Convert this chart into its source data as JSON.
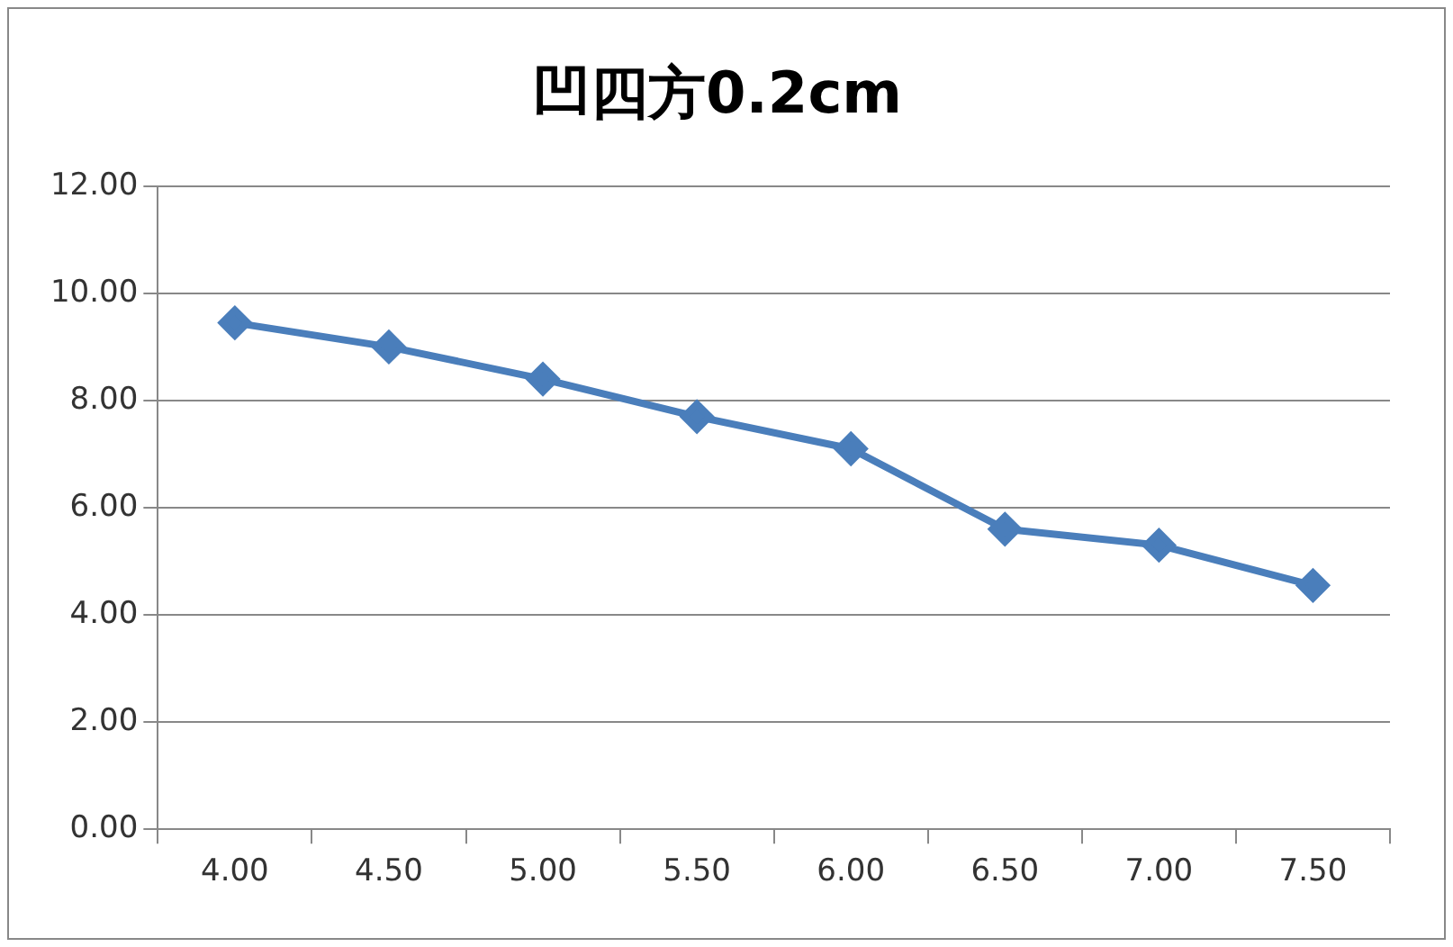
{
  "chart_data": {
    "type": "line",
    "title": "凹四方0.2cm",
    "categories": [
      "4.00",
      "4.50",
      "5.00",
      "5.50",
      "6.00",
      "6.50",
      "7.00",
      "7.50"
    ],
    "series": [
      {
        "color": "#4a7ebb",
        "values": [
          9.45,
          9.0,
          8.4,
          7.7,
          7.1,
          5.6,
          5.3,
          4.55
        ]
      }
    ],
    "ylim": [
      0,
      12
    ],
    "yticks": [
      {
        "value": 0,
        "label": "0.00"
      },
      {
        "value": 2,
        "label": "2.00"
      },
      {
        "value": 4,
        "label": "4.00"
      },
      {
        "value": 6,
        "label": "6.00"
      },
      {
        "value": 8,
        "label": "8.00"
      },
      {
        "value": 10,
        "label": "10.00"
      },
      {
        "value": 12,
        "label": "12.00"
      }
    ],
    "grid": "y",
    "legend": false,
    "marker": "diamond",
    "line_style": "solid"
  }
}
